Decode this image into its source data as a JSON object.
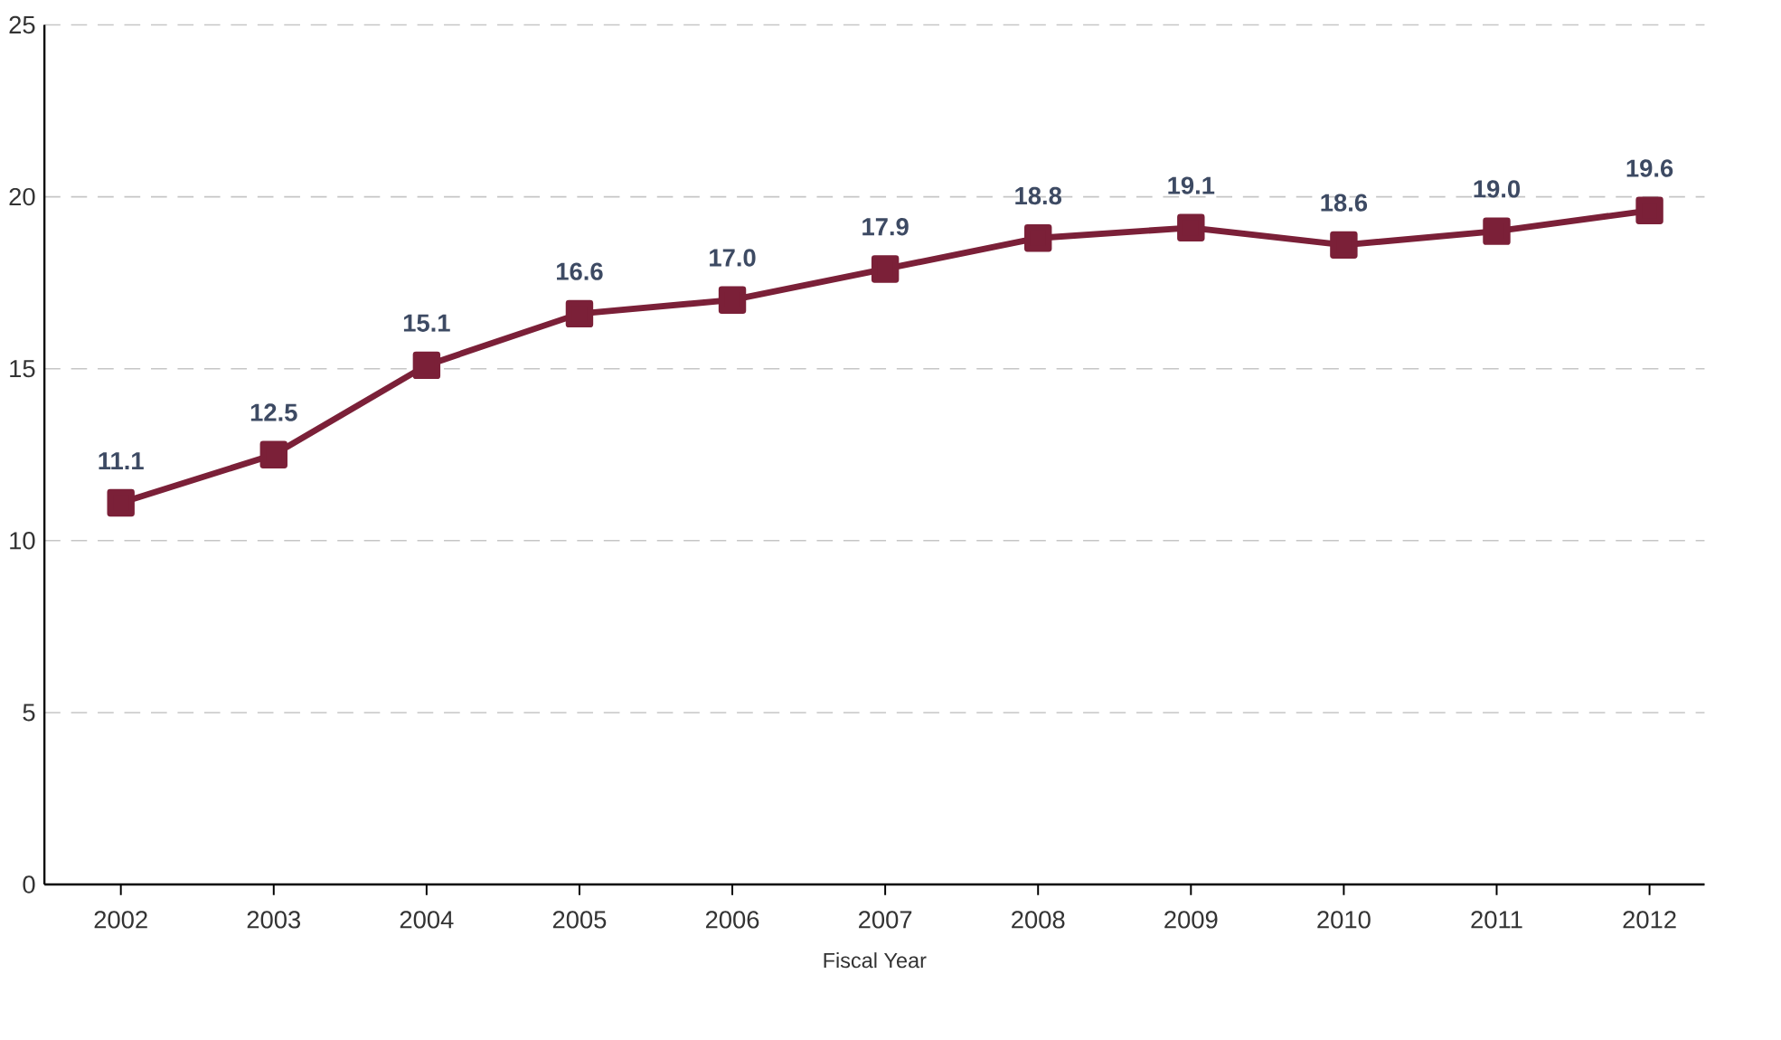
{
  "chart_data": {
    "type": "line",
    "xlabel": "Fiscal Year",
    "categories": [
      "2002",
      "2003",
      "2004",
      "2005",
      "2006",
      "2007",
      "2008",
      "2009",
      "2010",
      "2011",
      "2012"
    ],
    "values": [
      11.1,
      12.5,
      15.1,
      16.6,
      17.0,
      17.9,
      18.8,
      19.1,
      18.6,
      19.0,
      19.6
    ],
    "color": "#7b2038",
    "marker": "square",
    "line_style": "solid",
    "value_labels": [
      "11.1",
      "12.5",
      "15.1",
      "16.6",
      "17.0",
      "17.9",
      "18.8",
      "19.1",
      "18.6",
      "19.0",
      "19.6"
    ],
    "grid": "y",
    "ylim": [
      0,
      25
    ],
    "yticks": [
      0,
      5,
      10,
      15,
      20,
      25
    ]
  }
}
